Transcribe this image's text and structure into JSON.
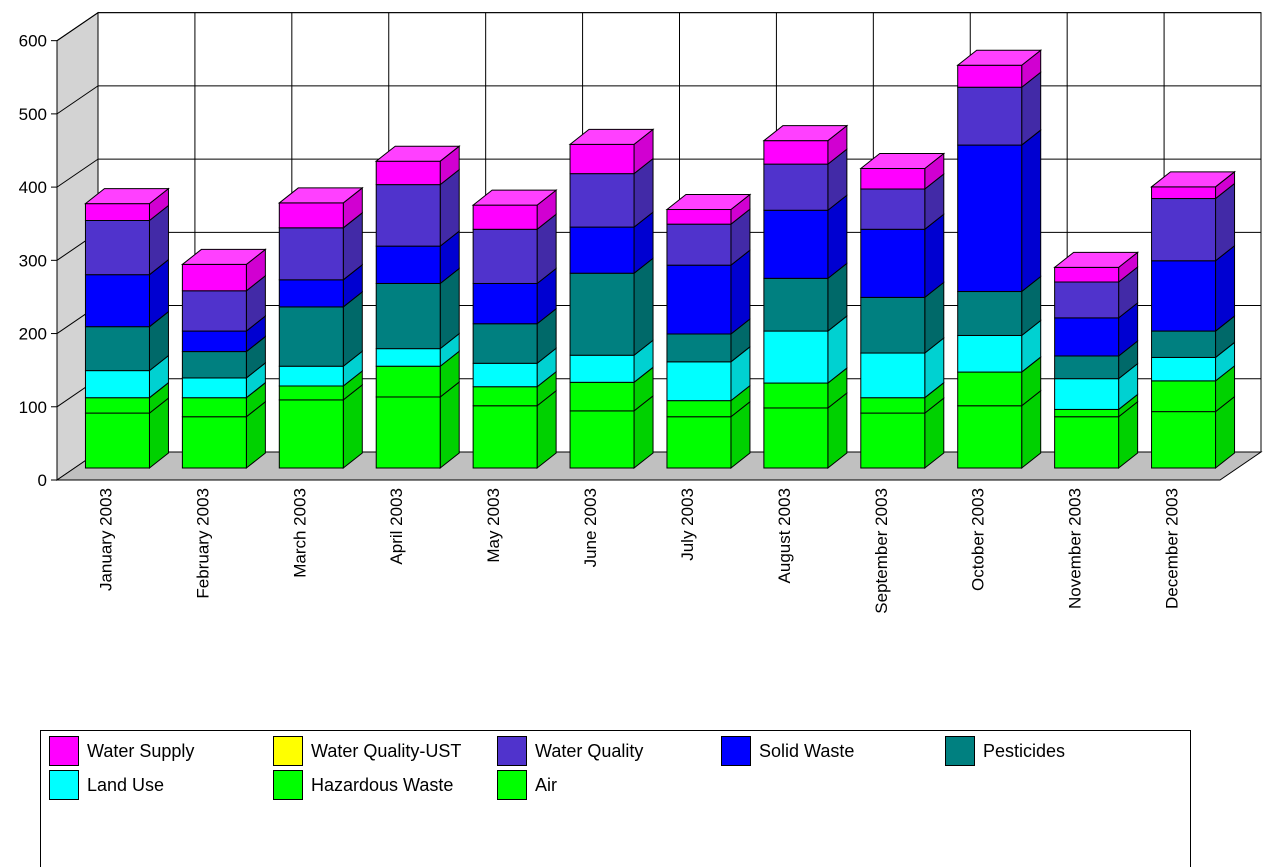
{
  "chart_data": {
    "type": "bar",
    "stacked": true,
    "three_d": true,
    "categories": [
      "January  2003",
      "February  2003",
      "March  2003",
      "April  2003",
      "May  2003",
      "June  2003",
      "July  2003",
      "August  2003",
      "September  2003",
      "October  2003",
      "November  2003",
      "December  2003"
    ],
    "ylim": [
      0,
      600
    ],
    "yticks": [
      "0",
      "100",
      "200",
      "300",
      "400",
      "500",
      "600"
    ],
    "grid": true,
    "legend_position": "bottom",
    "series": [
      {
        "name": "Air",
        "color": "#00FF00",
        "values": [
          75,
          70,
          93,
          97,
          85,
          78,
          70,
          82,
          75,
          85,
          70,
          77
        ]
      },
      {
        "name": "Hazardous Waste",
        "color": "#00FF00",
        "values": [
          21,
          26,
          19,
          42,
          26,
          39,
          22,
          34,
          21,
          46,
          10,
          42
        ]
      },
      {
        "name": "Water Quality-UST",
        "color": "#FFFF00",
        "values": [
          0,
          0,
          0,
          0,
          0,
          0,
          0,
          0,
          0,
          0,
          0,
          0
        ]
      },
      {
        "name": "Land Use",
        "color": "#00FFFF",
        "values": [
          37,
          27,
          27,
          24,
          32,
          37,
          53,
          71,
          61,
          50,
          42,
          32
        ]
      },
      {
        "name": "Pesticides",
        "color": "#008080",
        "values": [
          60,
          36,
          81,
          89,
          54,
          112,
          38,
          72,
          76,
          60,
          31,
          36
        ]
      },
      {
        "name": "Solid Waste",
        "color": "#0000FF",
        "values": [
          71,
          28,
          37,
          51,
          55,
          63,
          94,
          93,
          93,
          200,
          52,
          96
        ]
      },
      {
        "name": "Water Quality",
        "color": "#5033CC",
        "values": [
          74,
          55,
          71,
          84,
          74,
          73,
          56,
          63,
          55,
          79,
          49,
          85
        ]
      },
      {
        "name": "Water Supply",
        "color": "#FF00FF",
        "values": [
          23,
          36,
          34,
          32,
          33,
          40,
          20,
          32,
          28,
          30,
          20,
          16
        ]
      }
    ]
  },
  "legend": {
    "items": [
      {
        "name": "Water Supply",
        "color": "#FF00FF"
      },
      {
        "name": "Water Quality-UST",
        "color": "#FFFF00"
      },
      {
        "name": "Water Quality",
        "color": "#5033CC"
      },
      {
        "name": "Solid Waste",
        "color": "#0000FF"
      },
      {
        "name": "Pesticides",
        "color": "#008080"
      },
      {
        "name": "Land Use",
        "color": "#00FFFF"
      },
      {
        "name": "Hazardous Waste",
        "color": "#00FF00"
      },
      {
        "name": "Air",
        "color": "#00FF00"
      }
    ]
  }
}
